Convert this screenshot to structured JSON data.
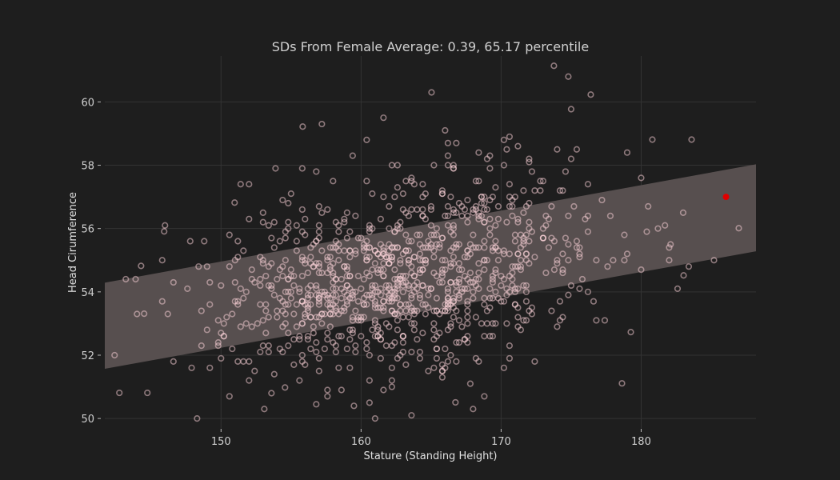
{
  "chart_data": {
    "type": "scatter",
    "title": "SDs From Female Average: 0.39, 65.17 percentile",
    "xlabel": "Stature (Standing Height)",
    "ylabel": "Head Cirumference",
    "xlim": [
      141.7,
      188.2
    ],
    "ylim": [
      49.7,
      61.45
    ],
    "grid": true,
    "x_ticks": [
      150,
      160,
      170,
      180
    ],
    "y_ticks": [
      50,
      52,
      54,
      56,
      58,
      60
    ],
    "band": {
      "description": "shaded regression band",
      "x": [
        141.7,
        188.2
      ],
      "lower": [
        51.57,
        55.28
      ],
      "upper": [
        54.29,
        58.03
      ],
      "color": "#574f4f"
    },
    "population_cloud": {
      "n": 1000,
      "x_mean": 163.0,
      "x_sd": 6.6,
      "y_mean": 54.6,
      "y_sd": 1.65,
      "slope": 0.08,
      "seed": 7,
      "marker": "hollow circle",
      "color": "#ffd6dc"
    },
    "outliers": [
      {
        "x": 142.74,
        "y": 50.81
      },
      {
        "x": 144.74,
        "y": 50.81
      },
      {
        "x": 148.29,
        "y": 50.0
      },
      {
        "x": 165.03,
        "y": 60.3
      },
      {
        "x": 173.77,
        "y": 61.14
      },
      {
        "x": 176.4,
        "y": 60.23
      },
      {
        "x": 155.83,
        "y": 59.22
      },
      {
        "x": 186.97,
        "y": 56.01
      },
      {
        "x": 183.6,
        "y": 58.81
      },
      {
        "x": 180.8,
        "y": 58.81
      },
      {
        "x": 178.63,
        "y": 51.11
      },
      {
        "x": 179.26,
        "y": 52.73
      },
      {
        "x": 183.03,
        "y": 54.52
      },
      {
        "x": 145.94,
        "y": 55.91
      },
      {
        "x": 150.97,
        "y": 56.82
      },
      {
        "x": 144.29,
        "y": 54.82
      },
      {
        "x": 144.51,
        "y": 53.31
      },
      {
        "x": 153.09,
        "y": 50.3
      },
      {
        "x": 154.57,
        "y": 50.98
      },
      {
        "x": 156.8,
        "y": 50.45
      },
      {
        "x": 159.49,
        "y": 50.4
      },
      {
        "x": 166.74,
        "y": 50.51
      },
      {
        "x": 153.89,
        "y": 57.9
      },
      {
        "x": 175.0,
        "y": 59.77
      },
      {
        "x": 182.1,
        "y": 55.5
      },
      {
        "x": 181.7,
        "y": 56.1
      },
      {
        "x": 180.5,
        "y": 56.7
      },
      {
        "x": 146.6,
        "y": 51.8
      },
      {
        "x": 147.9,
        "y": 51.6
      },
      {
        "x": 143.9,
        "y": 54.4
      }
    ],
    "highlight": {
      "x": 186.06,
      "y": 57.0,
      "color": "#e00000"
    }
  }
}
